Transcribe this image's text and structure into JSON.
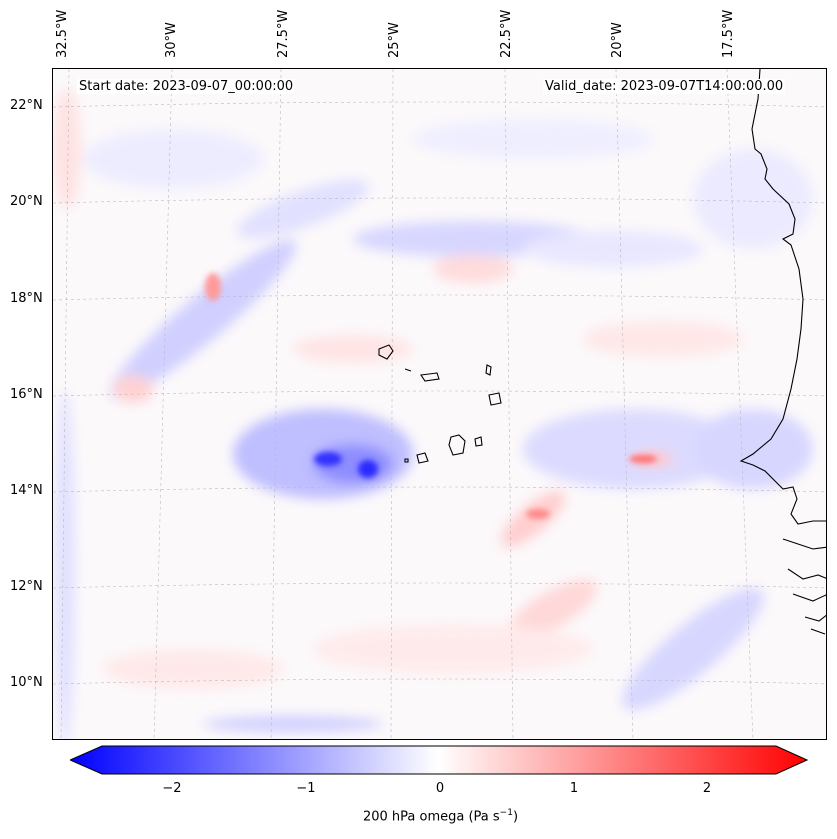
{
  "map": {
    "start_date": "Start date: 2023-09-07_00:00:00",
    "valid_date": "Valid_date: 2023-09-07T14:00:00.00",
    "longitude_labels": [
      "32.5°W",
      "30°W",
      "27.5°W",
      "25°W",
      "22.5°W",
      "20°W",
      "17.5°W"
    ],
    "latitude_labels": [
      "22°N",
      "20°N",
      "18°N",
      "16°N",
      "14°N",
      "12°N",
      "10°N"
    ],
    "field": "200 hPa omega",
    "region": "Eastern tropical Atlantic, Cape Verde Islands and West African coast"
  },
  "colorbar": {
    "tick_labels": [
      "−2",
      "−1",
      "0",
      "1",
      "2"
    ],
    "label": "200 hPa omega (Pa s",
    "label_sup": "−1",
    "label_end": ")",
    "min": -2.7,
    "max": 2.7,
    "colors": {
      "negative": "#0000ff",
      "neutral": "#ffffff",
      "positive": "#ff0000"
    }
  }
}
